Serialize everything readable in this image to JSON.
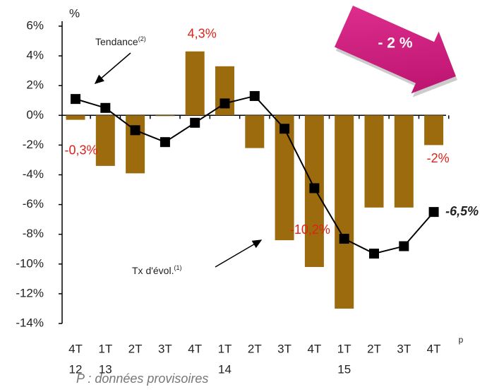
{
  "chart_data": {
    "type": "bar",
    "unit": "%",
    "categories": [
      "4T",
      "1T",
      "2T",
      "3T",
      "4T",
      "1T",
      "2T",
      "3T",
      "4T",
      "1T",
      "2T",
      "3T",
      "4T"
    ],
    "category_years": [
      "12",
      "13",
      null,
      null,
      null,
      "14",
      null,
      null,
      null,
      "15",
      null,
      null,
      null
    ],
    "last_category_note": "p",
    "series": [
      {
        "name": "Tx d'évol.",
        "name_note": "(1)",
        "type": "bar",
        "color": "#9c6b0e",
        "values": [
          -0.3,
          -3.4,
          -3.9,
          0,
          4.3,
          3.3,
          -2.2,
          -8.4,
          -10.2,
          -13.0,
          -6.2,
          -6.2,
          -2.0
        ],
        "value_labels": [
          "-0,3%",
          null,
          null,
          null,
          "4,3%",
          null,
          null,
          null,
          "-10,2%",
          null,
          null,
          null,
          "-2%"
        ]
      },
      {
        "name": "Tendance",
        "name_note": "(2)",
        "type": "line",
        "color": "#000000",
        "values": [
          1.1,
          0.5,
          -1.0,
          -1.8,
          -0.5,
          0.8,
          1.3,
          -0.9,
          -4.9,
          -8.3,
          -9.3,
          -8.8,
          -6.5
        ],
        "value_labels": [
          null,
          null,
          null,
          null,
          null,
          null,
          null,
          null,
          null,
          null,
          null,
          null,
          "-6,5%"
        ]
      }
    ],
    "ylim": [
      -14,
      6
    ],
    "yticks": [
      {
        "value": 6,
        "label": "6%"
      },
      {
        "value": 4,
        "label": "4%"
      },
      {
        "value": 2,
        "label": "2%"
      },
      {
        "value": 0,
        "label": "0%"
      },
      {
        "value": -2,
        "label": "-2%"
      },
      {
        "value": -4,
        "label": "-4%"
      },
      {
        "value": -6,
        "label": "-6%"
      },
      {
        "value": -8,
        "label": "-8%"
      },
      {
        "value": -10,
        "label": "-10%"
      },
      {
        "value": -12,
        "label": "-12%"
      },
      {
        "value": -14,
        "label": "-14%"
      }
    ],
    "callout": "- 2 %",
    "footnote": "P : données provisoires"
  }
}
